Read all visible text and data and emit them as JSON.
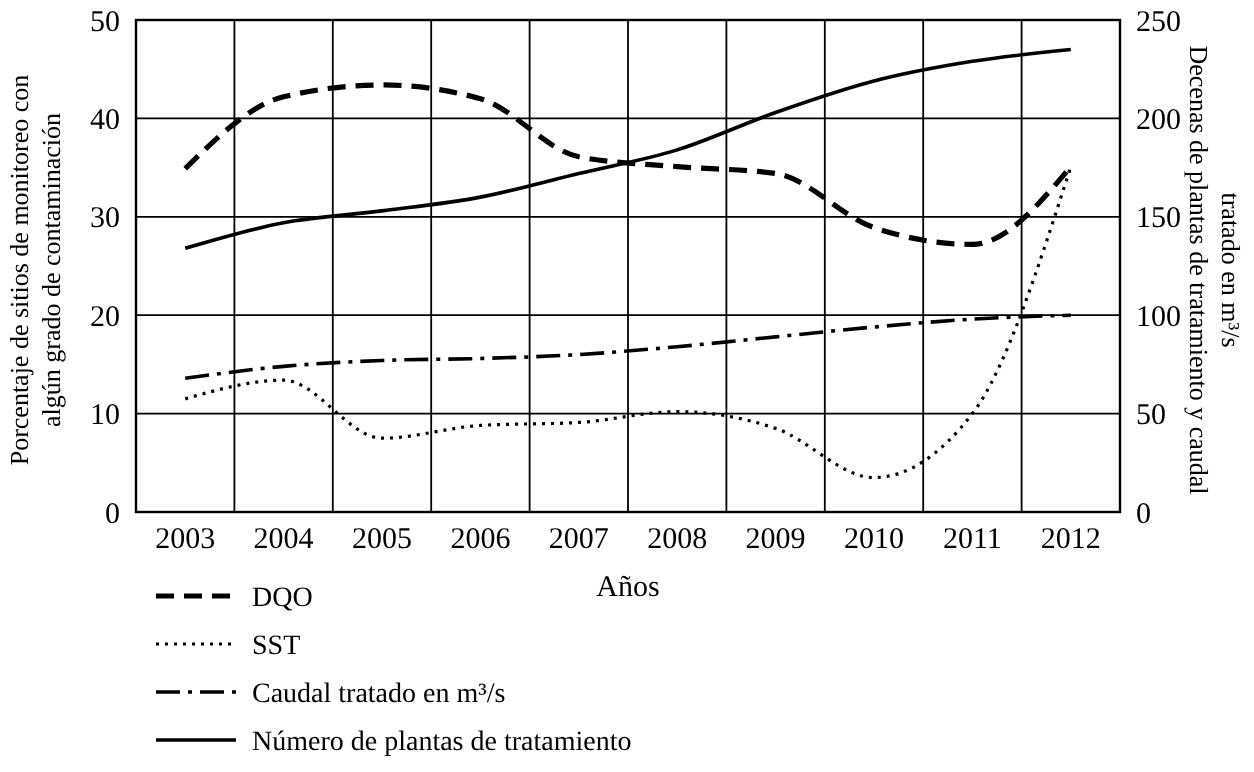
{
  "chart_data": {
    "type": "line",
    "xlabel": "Años",
    "ylabel": "Porcentaje de sitios de monitoreo con\nalgún grado de contaminación",
    "y2label": "Decenas de plantas de tratamiento y caudal\ntratado en m³/s",
    "categories": [
      "2003",
      "2004",
      "2005",
      "2006",
      "2007",
      "2008",
      "2009",
      "2010",
      "2011",
      "2012"
    ],
    "ylim": [
      0,
      50
    ],
    "yticks": [
      0,
      10,
      20,
      30,
      40,
      50
    ],
    "y2lim": [
      0,
      250
    ],
    "y2ticks": [
      0,
      50,
      100,
      150,
      200,
      250
    ],
    "grid": true,
    "legend": "bottom left",
    "series": [
      {
        "name": "DQO",
        "color": "#000000",
        "line_style": "dashed",
        "values": [
          34.9,
          42.2,
          43.4,
          42.0,
          36.1,
          35.1,
          34.4,
          28.9,
          27.2,
          35.1
        ]
      },
      {
        "name": "SST",
        "color": "#000000",
        "line_style": "dotted",
        "values": [
          11.5,
          13.4,
          7.5,
          8.8,
          9.1,
          10.2,
          8.5,
          3.5,
          10.0,
          35.1
        ]
      },
      {
        "name": "Caudal tratado en m³/s",
        "color": "#000000",
        "line_style": "dashdot",
        "axis": "y2",
        "values": [
          68,
          74,
          77,
          78,
          80,
          84,
          89,
          94,
          98,
          100
        ]
      },
      {
        "name": "Número de plantas de tratamiento",
        "color": "#000000",
        "line_style": "solid",
        "axis": "y2",
        "values": [
          134,
          147,
          153,
          160,
          172,
          184,
          203,
          219,
          229,
          235
        ]
      }
    ]
  }
}
